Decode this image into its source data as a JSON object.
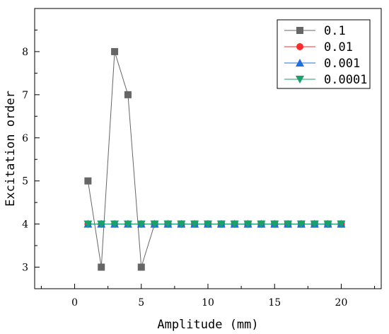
{
  "chart_data": {
    "type": "line",
    "xlabel": "Amplitude (mm)",
    "ylabel": "Excitation order",
    "xlim": [
      -3,
      23
    ],
    "ylim": [
      2.5,
      9.0
    ],
    "x_ticks": [
      0,
      5,
      10,
      15,
      20
    ],
    "x_tick_labels": [
      "0",
      "5",
      "10",
      "15",
      "20"
    ],
    "y_ticks": [
      3,
      4,
      5,
      6,
      7,
      8
    ],
    "y_tick_labels": [
      "3",
      "4",
      "5",
      "6",
      "7",
      "8"
    ],
    "grid": false,
    "legend_position": "top-right",
    "x": [
      1,
      2,
      3,
      4,
      5,
      6,
      7,
      8,
      9,
      10,
      11,
      12,
      13,
      14,
      15,
      16,
      17,
      18,
      19,
      20
    ],
    "series": [
      {
        "name": "0.1",
        "marker": "square",
        "color": "#666666",
        "values": [
          5,
          3,
          8,
          7,
          3,
          4,
          4,
          4,
          4,
          4,
          4,
          4,
          4,
          4,
          4,
          4,
          4,
          4,
          4,
          4
        ]
      },
      {
        "name": "0.01",
        "marker": "circle",
        "color": "#ff2a2a",
        "values": [
          4,
          4,
          4,
          4,
          4,
          4,
          4,
          4,
          4,
          4,
          4,
          4,
          4,
          4,
          4,
          4,
          4,
          4,
          4,
          4
        ]
      },
      {
        "name": "0.001",
        "marker": "triangle-up",
        "color": "#1f6fe0",
        "values": [
          4,
          4,
          4,
          4,
          4,
          4,
          4,
          4,
          4,
          4,
          4,
          4,
          4,
          4,
          4,
          4,
          4,
          4,
          4,
          4
        ]
      },
      {
        "name": "0.0001",
        "marker": "triangle-down",
        "color": "#1aa06a",
        "values": [
          4,
          4,
          4,
          4,
          4,
          4,
          4,
          4,
          4,
          4,
          4,
          4,
          4,
          4,
          4,
          4,
          4,
          4,
          4,
          4
        ]
      }
    ]
  }
}
